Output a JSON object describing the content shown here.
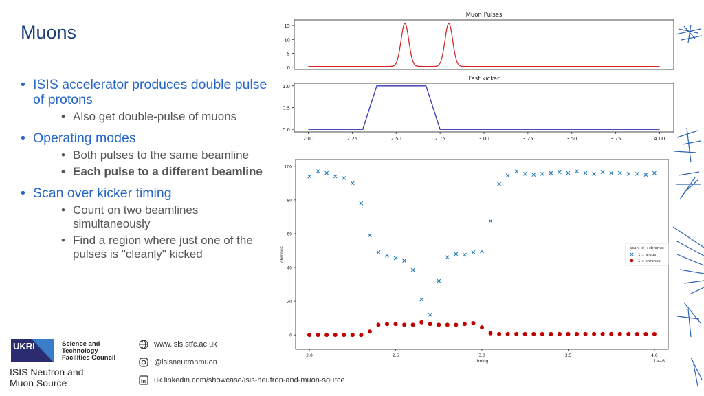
{
  "slide": {
    "title": "Muons",
    "bullets": [
      {
        "text": "ISIS accelerator produces double pulse of protons",
        "sub": [
          {
            "text": "Also get double-pulse of muons",
            "bold": false
          }
        ]
      },
      {
        "text": "Operating modes",
        "sub": [
          {
            "text": "Both pulses to the same beamline",
            "bold": false
          },
          {
            "text": "Each pulse to a different beamline",
            "bold": true
          }
        ]
      },
      {
        "text": "Scan over kicker timing",
        "sub": [
          {
            "text": "Count on two beamlines simultaneously",
            "bold": false
          },
          {
            "text": "Find a region where just one of the pulses is \"cleanly\" kicked",
            "bold": false
          }
        ]
      }
    ]
  },
  "footer": {
    "logo_text": "UKRI",
    "council": [
      "Science and",
      "Technology",
      "Facilities Council"
    ],
    "isis_name": [
      "ISIS Neutron and",
      "Muon Source"
    ],
    "website": "www.isis.stfc.ac.uk",
    "instagram": "@isisneutronmuon",
    "linkedin": "uk.linkedin.com/showcase/isis-neutron-and-muon-source"
  },
  "colors": {
    "title": "#1c3f7c",
    "bullet": "#2566c8",
    "pulse": "#d62728",
    "kicker": "#3232b4",
    "argus": "#1f77b4",
    "chronus": "#c00000"
  },
  "chart_data": [
    {
      "type": "line",
      "title": "Muon Pulses",
      "xlim": [
        1.92,
        4.08
      ],
      "ylim": [
        -0.8,
        17
      ],
      "yticks": [
        0,
        5,
        10,
        15
      ],
      "series": [
        {
          "name": "pulses",
          "baseline": 0.3,
          "peaks": [
            {
              "x": 2.55,
              "height": 15.8,
              "sigma": 0.022
            },
            {
              "x": 2.8,
              "height": 15.8,
              "sigma": 0.022
            }
          ]
        }
      ]
    },
    {
      "type": "line",
      "title": "Fast kicker",
      "xlim": [
        1.92,
        4.08
      ],
      "ylim": [
        -0.06,
        1.06
      ],
      "yticks": [
        0.0,
        0.5,
        1.0
      ],
      "xticks": [
        2.0,
        2.25,
        2.5,
        2.75,
        3.0,
        3.25,
        3.5,
        3.75,
        4.0
      ],
      "xticklabels": [
        "2.00",
        "2.25",
        "2.50",
        "2.75",
        "3.00",
        "3.25",
        "3.50",
        "3.75",
        "4.00"
      ],
      "series": [
        {
          "name": "kicker",
          "x": [
            2.0,
            2.31,
            2.39,
            2.67,
            2.75,
            4.0
          ],
          "y": [
            0,
            0,
            1,
            1,
            0,
            0
          ]
        }
      ]
    },
    {
      "type": "scatter",
      "xlabel": "timing",
      "ylabel": "chronus",
      "x_scale_note": "1e−6",
      "xlim": [
        1.92,
        4.08
      ],
      "ylim": [
        -8.5,
        104
      ],
      "xticks": [
        2.0,
        2.5,
        3.0,
        3.5,
        4.0
      ],
      "xticklabels": [
        "2.0",
        "2.5",
        "3.0",
        "3.5",
        "4.0"
      ],
      "yticks": [
        0,
        20,
        40,
        60,
        80,
        100
      ],
      "legend": {
        "title": "scan_id :: chronus",
        "position": "right",
        "entries": [
          "1 :: argus",
          "1 :: chronus"
        ]
      },
      "x": [
        2.0,
        2.05,
        2.1,
        2.15,
        2.2,
        2.25,
        2.3,
        2.35,
        2.4,
        2.45,
        2.5,
        2.55,
        2.6,
        2.65,
        2.7,
        2.75,
        2.8,
        2.85,
        2.9,
        2.95,
        3.0,
        3.05,
        3.1,
        3.15,
        3.2,
        3.25,
        3.3,
        3.35,
        3.4,
        3.45,
        3.5,
        3.55,
        3.6,
        3.65,
        3.7,
        3.75,
        3.8,
        3.85,
        3.9,
        3.95,
        4.0
      ],
      "series": [
        {
          "name": "1 :: argus",
          "marker": "x",
          "values": [
            94,
            97,
            96,
            94,
            93,
            90,
            78,
            59,
            49,
            47,
            45.5,
            44,
            38.5,
            21,
            12,
            32,
            46,
            48,
            47.5,
            49,
            49.5,
            67.5,
            89.5,
            94.5,
            97,
            95.5,
            95,
            95.5,
            96,
            96.5,
            96,
            97,
            96,
            95.5,
            96.5,
            96,
            96,
            95.5,
            95.5,
            95,
            96
          ]
        },
        {
          "name": "1 :: chronus",
          "marker": "o",
          "values": [
            0,
            0,
            0,
            0,
            0,
            0,
            0,
            2,
            6,
            6.5,
            6.5,
            6,
            6,
            7.5,
            6.5,
            6,
            6,
            6,
            6.5,
            7,
            4.5,
            1,
            0.5,
            0.5,
            0.5,
            0.5,
            0.5,
            0.5,
            0.5,
            0.5,
            0.5,
            0.5,
            0.5,
            0.5,
            0.5,
            0.5,
            0.5,
            0.5,
            0.5,
            0.5,
            0.5
          ]
        }
      ]
    }
  ]
}
